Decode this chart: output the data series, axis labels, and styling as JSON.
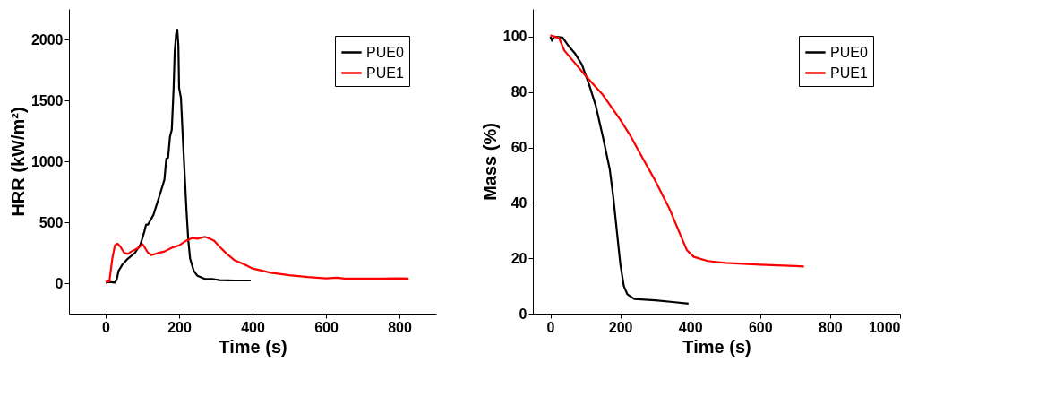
{
  "chart_data": [
    {
      "type": "line",
      "xlabel": "Time (s)",
      "ylabel": "HRR (kW/m²)",
      "xlim": [
        -100,
        900
      ],
      "ylim": [
        -250,
        2250
      ],
      "xticks": [
        0,
        200,
        400,
        600,
        800
      ],
      "yticks": [
        0,
        500,
        1000,
        1500,
        2000
      ],
      "grid": false,
      "legend": "top right",
      "line_style": "solid",
      "marker": "none",
      "series": [
        {
          "name": "PUE0",
          "color": "#000000",
          "x": [
            0,
            10,
            25,
            30,
            35,
            45,
            60,
            80,
            95,
            105,
            110,
            115,
            130,
            150,
            160,
            165,
            170,
            175,
            180,
            185,
            188,
            192,
            195,
            198,
            200,
            205,
            210,
            215,
            220,
            225,
            230,
            240,
            250,
            270,
            290,
            310,
            350,
            395
          ],
          "values": [
            5,
            10,
            5,
            30,
            100,
            150,
            200,
            250,
            320,
            420,
            480,
            480,
            560,
            750,
            850,
            1020,
            1030,
            1200,
            1260,
            1600,
            1900,
            2050,
            2080,
            1950,
            1600,
            1520,
            1200,
            900,
            600,
            350,
            200,
            100,
            60,
            35,
            35,
            25,
            22,
            22
          ]
        },
        {
          "name": "PUE1",
          "color": "#ff0000",
          "x": [
            0,
            10,
            18,
            25,
            32,
            40,
            50,
            60,
            70,
            90,
            100,
            105,
            115,
            125,
            140,
            160,
            180,
            200,
            220,
            235,
            250,
            270,
            280,
            295,
            310,
            330,
            350,
            380,
            400,
            450,
            500,
            550,
            600,
            630,
            650,
            700,
            750,
            800,
            825
          ],
          "values": [
            10,
            15,
            200,
            310,
            325,
            300,
            250,
            240,
            260,
            290,
            320,
            300,
            250,
            230,
            245,
            260,
            290,
            310,
            350,
            370,
            365,
            380,
            370,
            350,
            300,
            240,
            190,
            150,
            120,
            85,
            65,
            50,
            40,
            45,
            38,
            38,
            38,
            40,
            38
          ]
        }
      ]
    },
    {
      "type": "line",
      "xlabel": "Time (s)",
      "ylabel": "Mass (%)",
      "xlim": [
        -50,
        1000
      ],
      "ylim": [
        0,
        110
      ],
      "xticks": [
        0,
        200,
        400,
        600,
        800,
        1000
      ],
      "yticks": [
        0,
        20,
        40,
        60,
        80,
        100
      ],
      "grid": false,
      "legend": "top right",
      "line_style": "solid",
      "marker": "none",
      "series": [
        {
          "name": "PUE0",
          "color": "#000000",
          "x": [
            0,
            5,
            10,
            35,
            50,
            70,
            90,
            110,
            130,
            150,
            170,
            180,
            190,
            200,
            210,
            220,
            240,
            300,
            350,
            395
          ],
          "values": [
            100,
            98.5,
            100,
            99.7,
            97,
            94,
            90,
            83,
            75,
            64,
            52,
            42,
            30,
            18,
            10,
            7,
            5.3,
            4.8,
            4.2,
            3.6
          ]
        },
        {
          "name": "PUE1",
          "color": "#ff0000",
          "x": [
            0,
            25,
            40,
            60,
            100,
            150,
            200,
            230,
            260,
            300,
            340,
            370,
            390,
            410,
            450,
            500,
            600,
            700,
            725
          ],
          "values": [
            100.5,
            99.5,
            95,
            92,
            86,
            79,
            70,
            64,
            57,
            48,
            38,
            29,
            23,
            20.5,
            19,
            18.3,
            17.7,
            17.2,
            17
          ]
        }
      ]
    }
  ]
}
